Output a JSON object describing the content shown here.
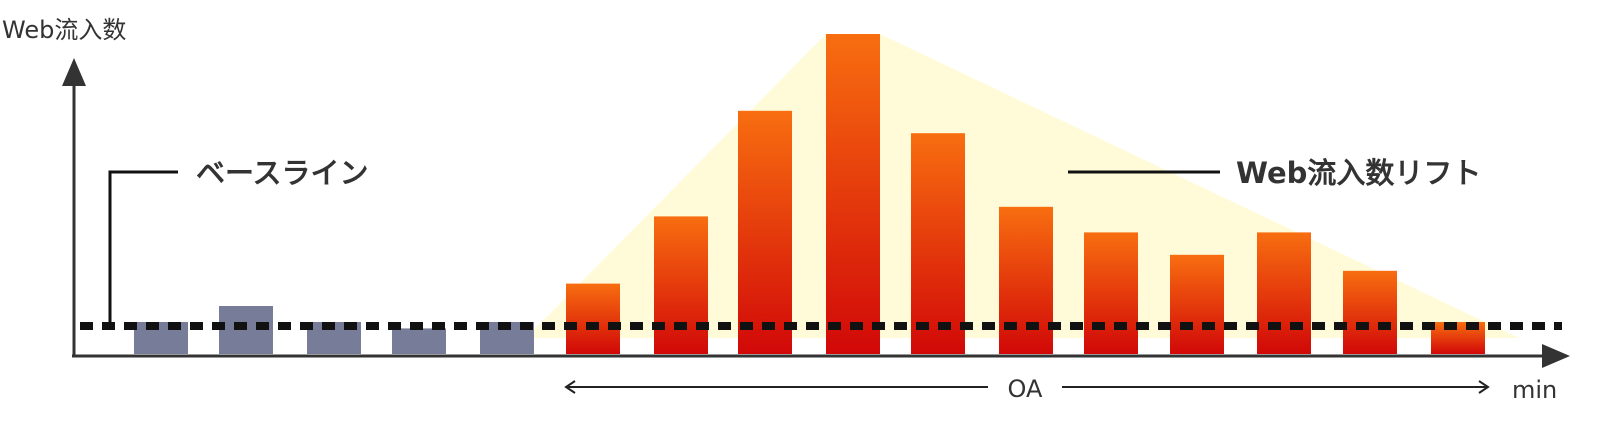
{
  "labels": {
    "y_axis": "Web流入数",
    "x_axis": "min",
    "baseline": "ベースライン",
    "lift": "Web流入数リフト",
    "oa": "OA"
  },
  "colors": {
    "axis": "#333333",
    "baseline_bar": "#777c99",
    "lift_bar_top": "#f86e10",
    "lift_bar_bottom": "#d10808",
    "lift_area": "#fffbd9",
    "dash": "#111111"
  },
  "chart_data": {
    "type": "bar",
    "baseline_level": 1,
    "series": [
      {
        "values": [
          1,
          1.5,
          1,
          0.8,
          1
        ]
      },
      {
        "values": [
          2.2,
          4.3,
          7.6,
          10,
          6.9,
          4.6,
          3.8,
          3.1,
          3.8,
          2.6,
          1
        ]
      }
    ],
    "ylim": [
      0,
      10.5
    ],
    "grid": false
  }
}
